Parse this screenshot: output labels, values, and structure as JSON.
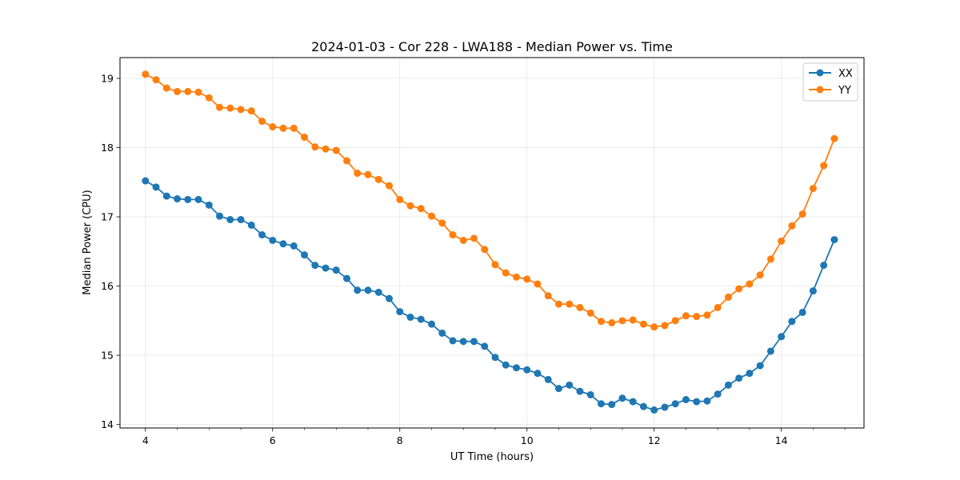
{
  "chart_data": {
    "type": "line",
    "title": "2024-01-03 - Cor 228 - LWA188 - Median Power vs. Time",
    "xlabel": "UT Time (hours)",
    "ylabel": "Median Power (CPU)",
    "xlim": [
      3.6,
      15.3
    ],
    "ylim": [
      13.95,
      19.3
    ],
    "xticks": [
      4,
      6,
      8,
      10,
      12,
      14
    ],
    "yticks": [
      14,
      15,
      16,
      17,
      18,
      19
    ],
    "xticks_minor": [
      3.5,
      4.5,
      5,
      5.5,
      6.5,
      7,
      7.5,
      8.5,
      9,
      9.5,
      10.5,
      11,
      11.5,
      12.5,
      13,
      13.5,
      14.5,
      15
    ],
    "grid": true,
    "legend_position": "top-right",
    "x": [
      4.0,
      4.1667,
      4.3333,
      4.5,
      4.6667,
      4.8333,
      5.0,
      5.1667,
      5.3333,
      5.5,
      5.6667,
      5.8333,
      6.0,
      6.1667,
      6.3333,
      6.5,
      6.6667,
      6.8333,
      7.0,
      7.1667,
      7.3333,
      7.5,
      7.6667,
      7.8333,
      8.0,
      8.1667,
      8.3333,
      8.5,
      8.6667,
      8.8333,
      9.0,
      9.1667,
      9.3333,
      9.5,
      9.6667,
      9.8333,
      10.0,
      10.1667,
      10.3333,
      10.5,
      10.6667,
      10.8333,
      11.0,
      11.1667,
      11.3333,
      11.5,
      11.6667,
      11.8333,
      12.0,
      12.1667,
      12.3333,
      12.5,
      12.6667,
      12.8333,
      13.0,
      13.1667,
      13.3333,
      13.5,
      13.6667,
      13.8333,
      14.0,
      14.1667,
      14.3333,
      14.5,
      14.6667,
      14.8333
    ],
    "series": [
      {
        "name": "XX",
        "color": "#1f77b4",
        "values": [
          17.52,
          17.43,
          17.3,
          17.26,
          17.25,
          17.25,
          17.17,
          17.01,
          16.96,
          16.96,
          16.88,
          16.74,
          16.66,
          16.61,
          16.58,
          16.45,
          16.3,
          16.26,
          16.23,
          16.11,
          15.94,
          15.94,
          15.91,
          15.82,
          15.63,
          15.55,
          15.52,
          15.45,
          15.32,
          15.21,
          15.2,
          15.2,
          15.13,
          14.97,
          14.86,
          14.82,
          14.79,
          14.74,
          14.65,
          14.52,
          14.57,
          14.48,
          14.43,
          14.3,
          14.29,
          14.38,
          14.33,
          14.26,
          14.21,
          14.25,
          14.3,
          14.36,
          14.33,
          14.34,
          14.44,
          14.57,
          14.67,
          14.74,
          14.85,
          15.06,
          15.27,
          15.49,
          15.62,
          15.93,
          16.3,
          16.67
        ]
      },
      {
        "name": "YY",
        "color": "#ff7f0e",
        "values": [
          19.06,
          18.98,
          18.86,
          18.81,
          18.81,
          18.8,
          18.72,
          18.58,
          18.57,
          18.55,
          18.53,
          18.38,
          18.3,
          18.28,
          18.28,
          18.15,
          18.01,
          17.98,
          17.96,
          17.81,
          17.63,
          17.61,
          17.54,
          17.45,
          17.25,
          17.16,
          17.12,
          17.01,
          16.91,
          16.74,
          16.66,
          16.69,
          16.53,
          16.31,
          16.19,
          16.13,
          16.1,
          16.03,
          15.86,
          15.74,
          15.74,
          15.69,
          15.61,
          15.49,
          15.47,
          15.5,
          15.51,
          15.45,
          15.41,
          15.43,
          15.5,
          15.57,
          15.56,
          15.58,
          15.69,
          15.84,
          15.96,
          16.03,
          16.16,
          16.39,
          16.65,
          16.87,
          17.04,
          17.41,
          17.74,
          18.13
        ]
      }
    ]
  }
}
